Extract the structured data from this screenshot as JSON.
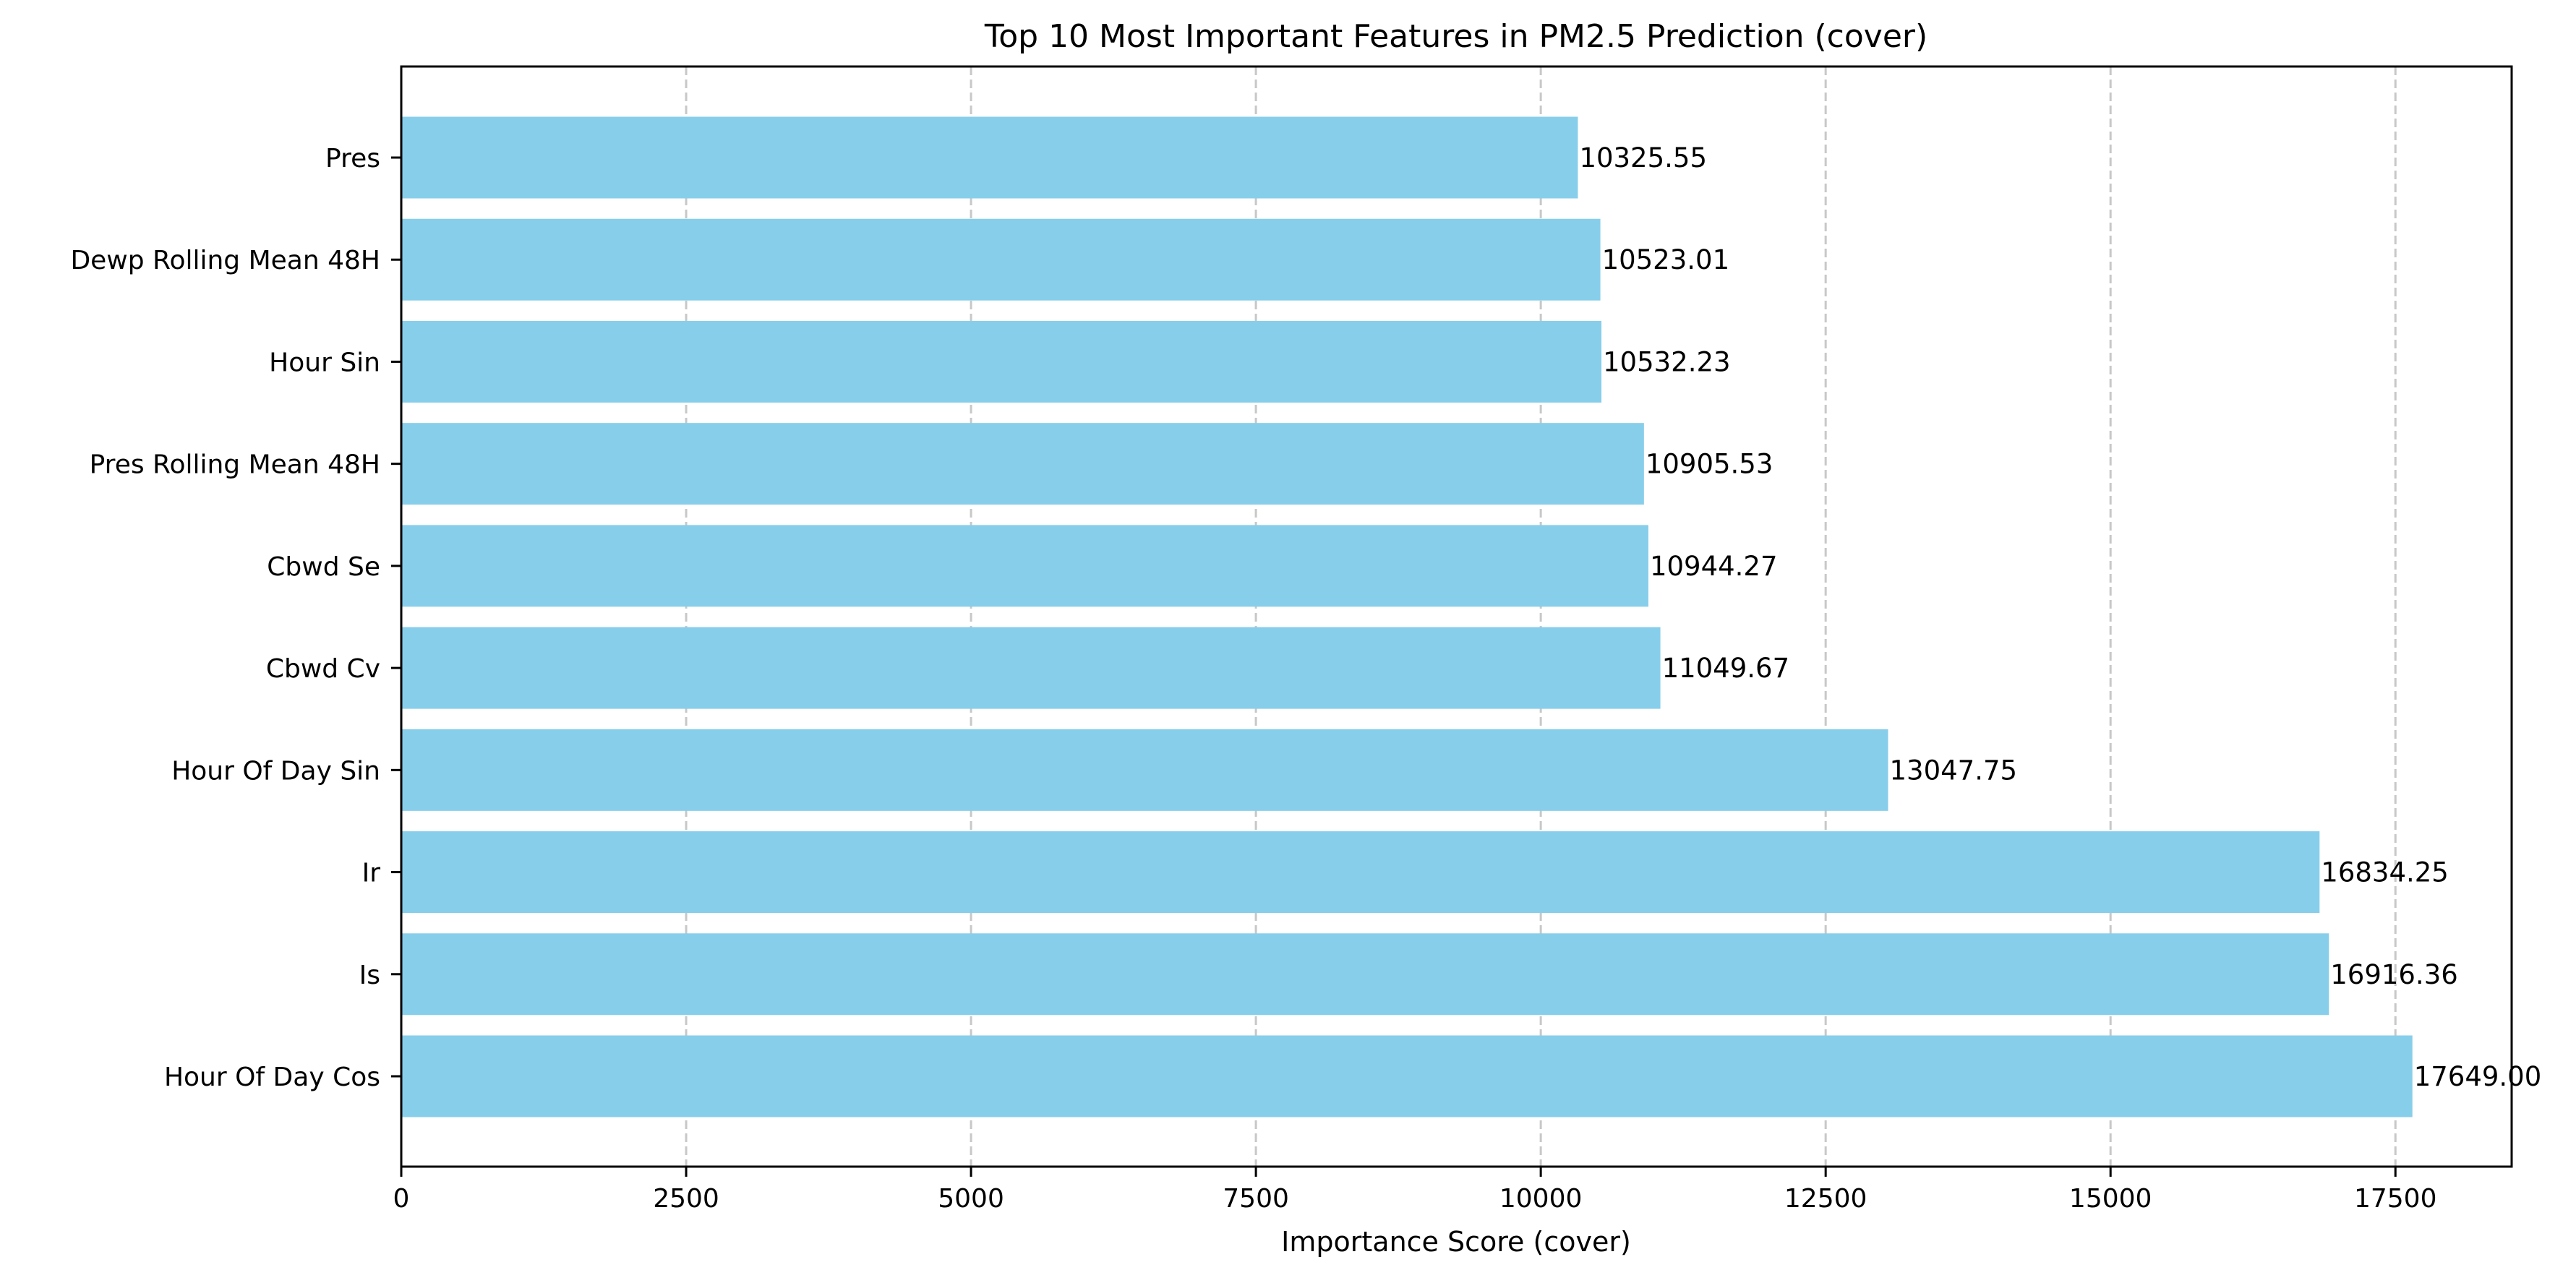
{
  "chart_data": {
    "type": "bar",
    "orientation": "horizontal",
    "title": "Top 10 Most Important Features in PM2.5 Prediction (cover)",
    "xlabel": "Importance Score (cover)",
    "ylabel": "",
    "xlim": [
      0,
      18520
    ],
    "xticks": [
      0,
      2500,
      5000,
      7500,
      10000,
      12500,
      15000,
      17500
    ],
    "xtick_labels": [
      "0",
      "2500",
      "5000",
      "7500",
      "10000",
      "12500",
      "15000",
      "17500"
    ],
    "grid": {
      "x": true,
      "y": false,
      "style": "dashed"
    },
    "bar_color": "#87CEEB",
    "categories": [
      "Pres",
      "Dewp Rolling Mean 48H",
      "Hour Sin",
      "Pres Rolling Mean 48H",
      "Cbwd Se",
      "Cbwd Cv",
      "Hour Of Day Sin",
      "Ir",
      "Is",
      "Hour Of Day Cos"
    ],
    "values": [
      10325.55,
      10523.01,
      10532.23,
      10905.53,
      10944.27,
      11049.67,
      13047.75,
      16834.25,
      16916.36,
      17649.0
    ],
    "value_labels": [
      "10325.55",
      "10523.01",
      "10532.23",
      "10905.53",
      "10944.27",
      "11049.67",
      "13047.75",
      "16834.25",
      "16916.36",
      "17649.00"
    ]
  }
}
